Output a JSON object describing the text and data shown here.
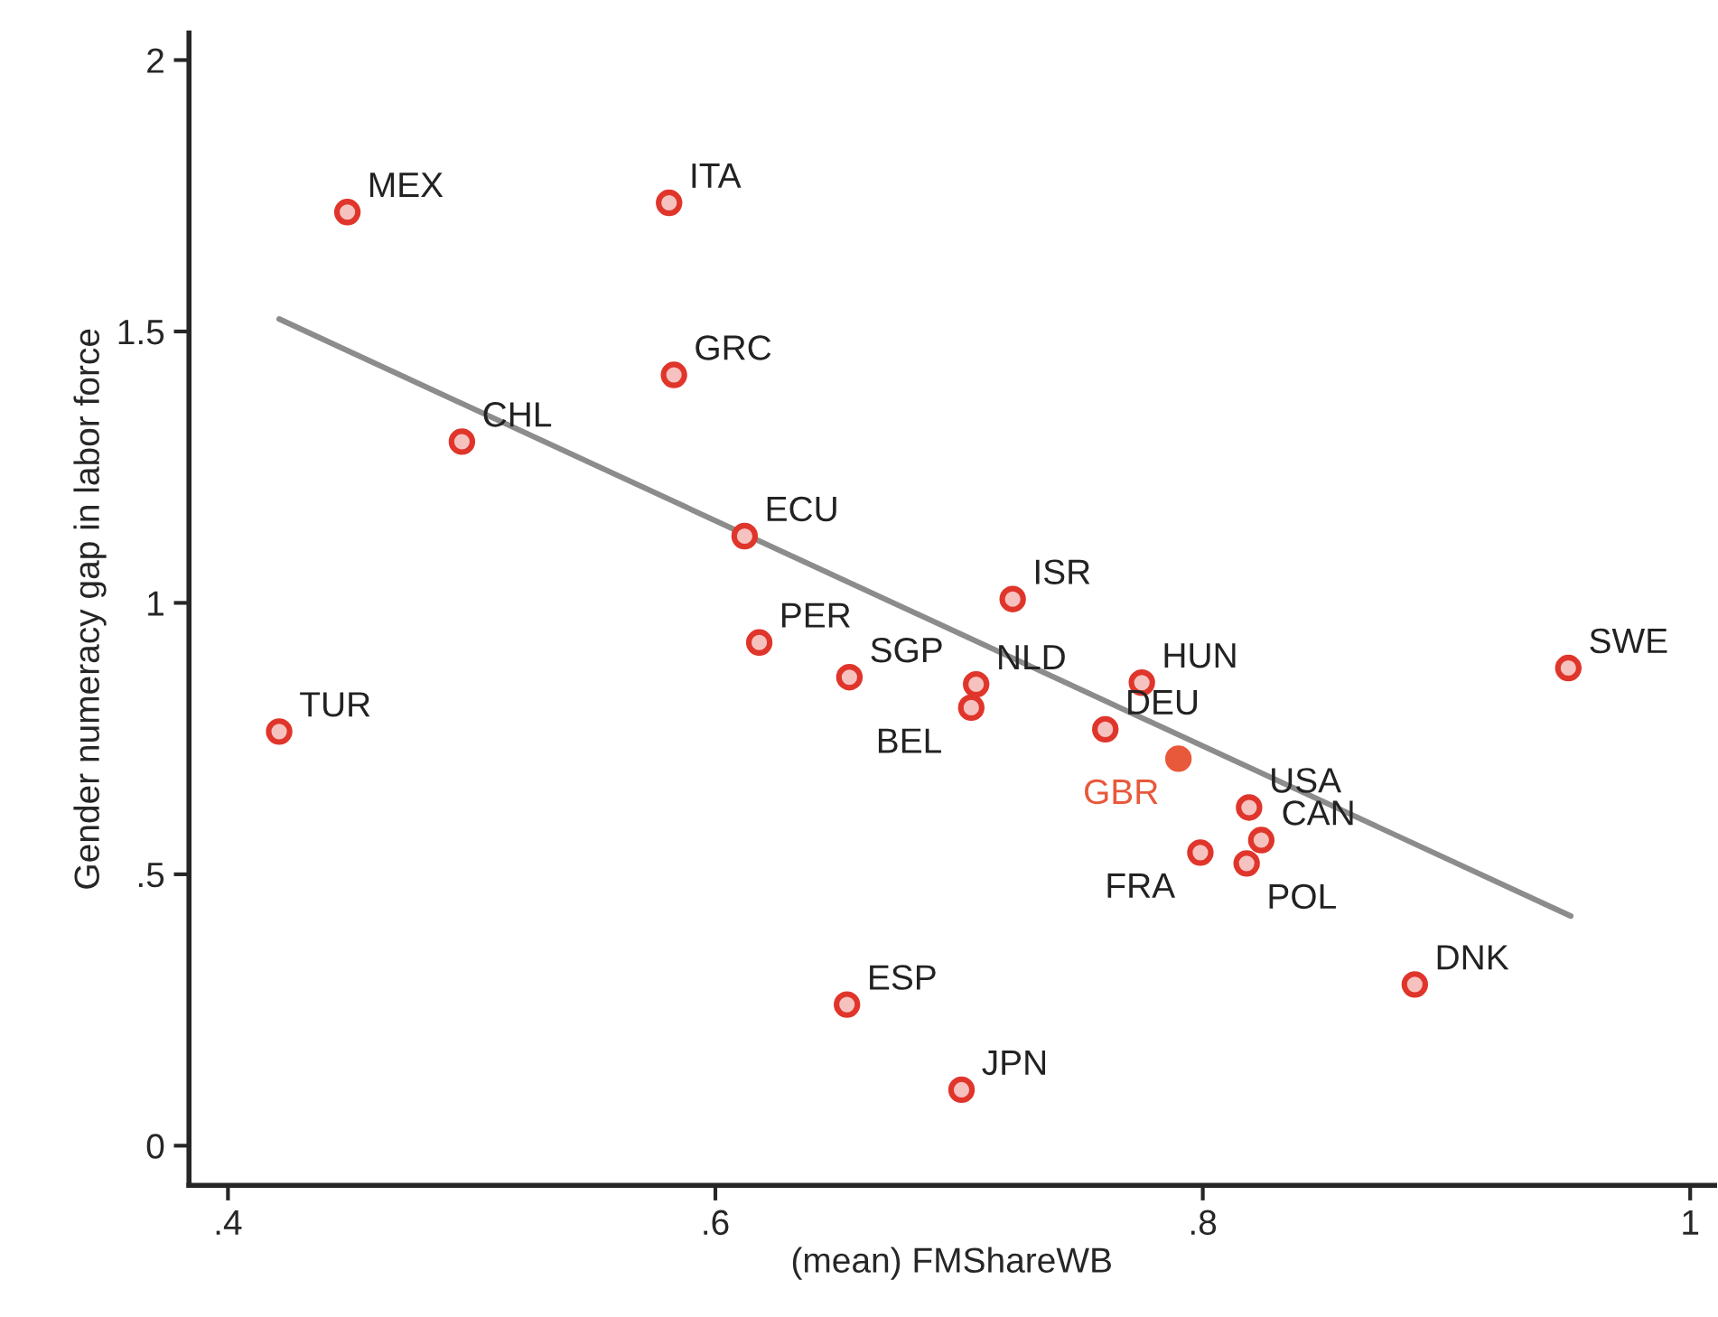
{
  "chart_data": {
    "type": "scatter",
    "xlabel": "(mean) FMShareWB",
    "ylabel": "Gender numeracy gap in labor force",
    "xlim": [
      0.384,
      1.01
    ],
    "ylim": [
      -0.073,
      2.05
    ],
    "xticks": [
      {
        "value": 0.4,
        "label": ".4"
      },
      {
        "value": 0.6,
        "label": ".6"
      },
      {
        "value": 0.8,
        "label": ".8"
      },
      1
    ],
    "yticks": [
      0,
      {
        "value": 0.5,
        "label": ".5"
      },
      1,
      1.5,
      2
    ],
    "grid": false,
    "legend": false,
    "marker": "circle",
    "series": [
      {
        "color": "#e0352b",
        "x": [
          0.449,
          0.581,
          0.583,
          0.496,
          0.612,
          0.722,
          0.618,
          0.655,
          0.707,
          0.705,
          0.775,
          0.76,
          0.819,
          0.824,
          0.799,
          0.818,
          0.95,
          0.421,
          0.887,
          0.654,
          0.701
        ],
        "values": [
          1.72,
          1.737,
          1.42,
          1.297,
          1.123,
          1.007,
          0.927,
          0.863,
          0.85,
          0.807,
          0.853,
          0.767,
          0.623,
          0.563,
          0.54,
          0.52,
          0.88,
          0.763,
          0.297,
          0.26,
          0.103
        ]
      },
      {
        "color": "#e8583a",
        "x": [
          0.79
        ],
        "values": [
          0.713
        ]
      },
      {
        "type": "line",
        "color": "#8c8c8c",
        "marker": "none",
        "x": [
          0.421,
          0.951
        ],
        "values": [
          1.523,
          0.423
        ]
      }
    ],
    "annotations": [
      {
        "text": "MEX",
        "x": 0.449,
        "y": 1.72
      },
      {
        "text": "ITA",
        "x": 0.581,
        "y": 1.737
      },
      {
        "text": "GRC",
        "x": 0.583,
        "y": 1.42
      },
      {
        "text": "CHL",
        "x": 0.496,
        "y": 1.297
      },
      {
        "text": "ECU",
        "x": 0.612,
        "y": 1.123
      },
      {
        "text": "ISR",
        "x": 0.722,
        "y": 1.007
      },
      {
        "text": "PER",
        "x": 0.618,
        "y": 0.927
      },
      {
        "text": "SGP",
        "x": 0.655,
        "y": 0.863
      },
      {
        "text": "NLD",
        "x": 0.707,
        "y": 0.85
      },
      {
        "text": "BEL",
        "x": 0.705,
        "y": 0.807
      },
      {
        "text": "HUN",
        "x": 0.775,
        "y": 0.853
      },
      {
        "text": "DEU",
        "x": 0.76,
        "y": 0.767
      },
      {
        "text": "GBR",
        "x": 0.79,
        "y": 0.713
      },
      {
        "text": "USA",
        "x": 0.819,
        "y": 0.623
      },
      {
        "text": "CAN",
        "x": 0.824,
        "y": 0.563
      },
      {
        "text": "FRA",
        "x": 0.799,
        "y": 0.54
      },
      {
        "text": "POL",
        "x": 0.818,
        "y": 0.52
      },
      {
        "text": "SWE",
        "x": 0.95,
        "y": 0.88
      },
      {
        "text": "TUR",
        "x": 0.421,
        "y": 0.763
      },
      {
        "text": "DNK",
        "x": 0.887,
        "y": 0.297
      },
      {
        "text": "ESP",
        "x": 0.654,
        "y": 0.26
      },
      {
        "text": "JPN",
        "x": 0.701,
        "y": 0.103
      }
    ]
  }
}
